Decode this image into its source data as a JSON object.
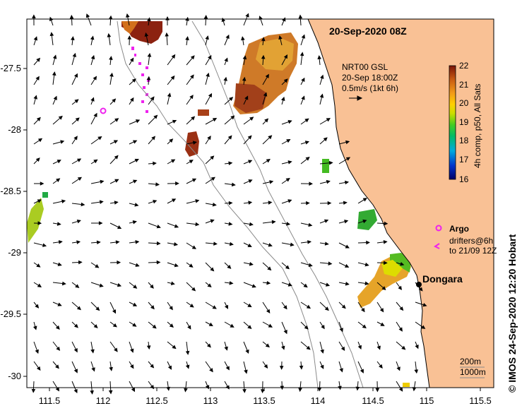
{
  "map": {
    "title": "20-Sep-2020 08Z",
    "xaxis": {
      "ticks": [
        "111.5",
        "112",
        "112.5",
        "113",
        "113.5",
        "114",
        "114.5",
        "115",
        "115.5"
      ]
    },
    "yaxis": {
      "ticks": [
        "-27.5",
        "-28",
        "-28.5",
        "-29",
        "-29.5",
        "-30"
      ]
    },
    "current_info": [
      "NRT00 GSL",
      "20-Sep 18:00Z",
      "0.5m/s (1kt 6h)"
    ],
    "colorbar": {
      "ticks": [
        "22",
        "21",
        "20",
        "19",
        "18",
        "17",
        "16"
      ],
      "label": "4h comp, p50, All Sats",
      "colors": [
        "#000066",
        "#0044cc",
        "#00aadd",
        "#00bb66",
        "#33cc33",
        "#aadd00",
        "#ffdd00",
        "#ffaa00",
        "#e07a10",
        "#b84a10",
        "#8a1a0a"
      ]
    },
    "legend": {
      "argo_label": "Argo",
      "drifter_line1": "drifters@6h",
      "drifter_line2": "to 21/09 12Z"
    },
    "isobaths": [
      "200m",
      "1000m"
    ],
    "city": "Dongara",
    "credit": "© IMOS 24-Sep-2020 12:20 Hobart",
    "land_color": "#f9c195",
    "argo_color": "#ee22ee"
  }
}
